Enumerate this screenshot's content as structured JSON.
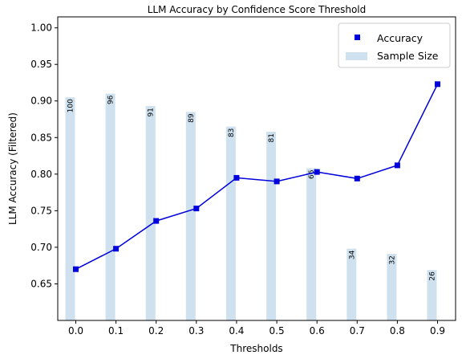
{
  "chart_data": {
    "type": "bar+line",
    "title": "LLM Accuracy by Confidence Score Threshold",
    "xlabel": "Thresholds",
    "ylabel": "LLM Accuracy (Filtered)",
    "x": [
      0.0,
      0.1,
      0.2,
      0.3,
      0.4,
      0.5,
      0.6,
      0.7,
      0.8,
      0.9
    ],
    "x_tick_labels": [
      "0.0",
      "0.1",
      "0.2",
      "0.3",
      "0.4",
      "0.5",
      "0.6",
      "0.7",
      "0.8",
      "0.9"
    ],
    "ylim": [
      0.6,
      1.015
    ],
    "y_ticks": [
      0.65,
      0.7,
      0.75,
      0.8,
      0.85,
      0.9,
      0.95,
      1.0
    ],
    "y_tick_labels": [
      "0.65",
      "0.70",
      "0.75",
      "0.80",
      "0.85",
      "0.90",
      "0.95",
      "1.00"
    ],
    "grid": false,
    "legend_position": "top-right",
    "series": [
      {
        "name": "Accuracy",
        "kind": "line",
        "marker": "square",
        "color": "#0000dd",
        "values": [
          0.67,
          0.698,
          0.736,
          0.753,
          0.795,
          0.79,
          0.803,
          0.794,
          0.812,
          0.923
        ]
      },
      {
        "name": "Sample Size",
        "kind": "bar",
        "color": "#cfe1ee",
        "values": [
          100,
          96,
          91,
          89,
          83,
          81,
          66,
          34,
          32,
          26
        ],
        "bar_top_accuracy": [
          0.905,
          0.91,
          0.893,
          0.885,
          0.865,
          0.858,
          0.808,
          0.698,
          0.691,
          0.669
        ],
        "labels": [
          "100",
          "96",
          "91",
          "89",
          "83",
          "81",
          "66",
          "34",
          "32",
          "26"
        ]
      }
    ]
  }
}
